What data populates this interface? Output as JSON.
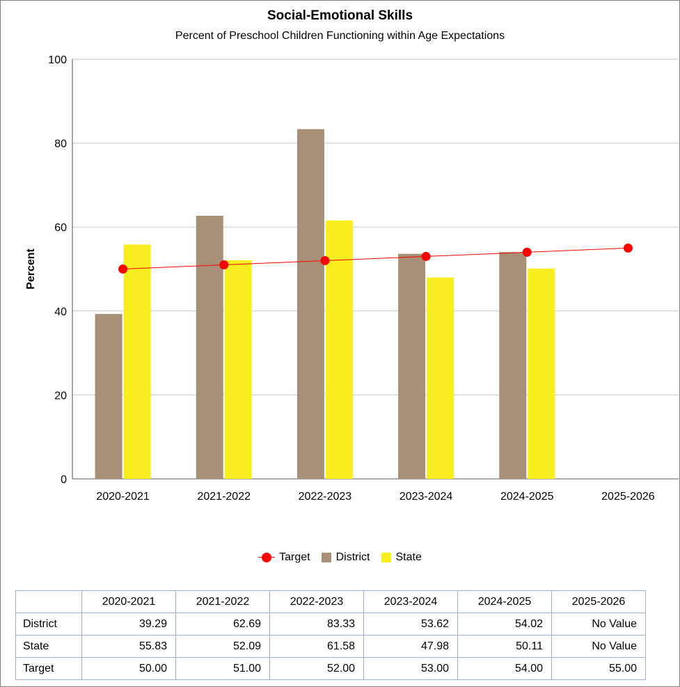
{
  "chart_data": {
    "type": "bar",
    "title": "Social-Emotional Skills",
    "subtitle": "Percent of Preschool Children Functioning within Age Expectations",
    "ylabel": "Percent",
    "xlabel": "",
    "ylim": [
      0,
      100
    ],
    "yticks": [
      "0",
      "20",
      "40",
      "60",
      "80",
      "100"
    ],
    "categories": [
      "2020-2021",
      "2021-2022",
      "2022-2023",
      "2023-2024",
      "2024-2025",
      "2025-2026"
    ],
    "series": [
      {
        "name": "District",
        "kind": "bar",
        "color": "#a89078",
        "values": [
          39.29,
          62.69,
          83.33,
          53.62,
          54.02,
          null
        ]
      },
      {
        "name": "State",
        "kind": "bar",
        "color": "#f8ee20",
        "values": [
          55.83,
          52.09,
          61.58,
          47.98,
          50.11,
          null
        ]
      },
      {
        "name": "Target",
        "kind": "line",
        "color": "#ff0000",
        "values": [
          50.0,
          51.0,
          52.0,
          53.0,
          54.0,
          55.0
        ]
      }
    ],
    "grid": true,
    "legend_position": "bottom"
  },
  "legend": {
    "target": "Target",
    "district": "District",
    "state": "State"
  },
  "table": {
    "header": [
      "",
      "2020-2021",
      "2021-2022",
      "2022-2023",
      "2023-2024",
      "2024-2025",
      "2025-2026"
    ],
    "rows": [
      {
        "label": "District",
        "cells": [
          "39.29",
          "62.69",
          "83.33",
          "53.62",
          "54.02",
          "No Value"
        ]
      },
      {
        "label": "State",
        "cells": [
          "55.83",
          "52.09",
          "61.58",
          "47.98",
          "50.11",
          "No Value"
        ]
      },
      {
        "label": "Target",
        "cells": [
          "50.00",
          "51.00",
          "52.00",
          "53.00",
          "54.00",
          "55.00"
        ]
      }
    ]
  }
}
